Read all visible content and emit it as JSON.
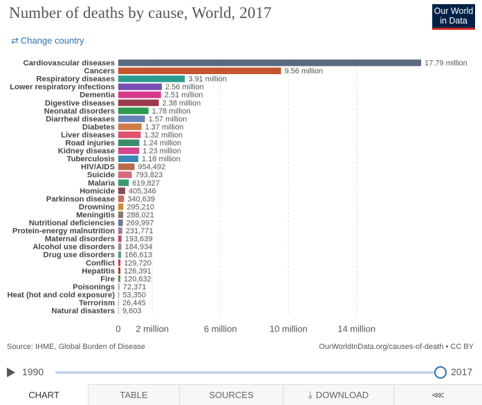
{
  "header": {
    "title": "Number of deaths by cause, World, 2017",
    "logo_line1": "Our World",
    "logo_line2": "in Data",
    "change_country": "Change country",
    "change_country_icon": "swap-arrows-icon"
  },
  "colors": {
    "accent": "#2c6fb3",
    "logo_bg": "#002147",
    "logo_accent": "#ce261e"
  },
  "chart_data": {
    "type": "bar",
    "orientation": "horizontal",
    "categories": [
      "Cardiovascular diseases",
      "Cancers",
      "Respiratory diseases",
      "Lower respiratory infections",
      "Dementia",
      "Digestive diseases",
      "Neonatal disorders",
      "Diarrheal diseases",
      "Diabetes",
      "Liver diseases",
      "Road injuries",
      "Kidney disease",
      "Tuberculosis",
      "HIV/AIDS",
      "Suicide",
      "Malaria",
      "Homicide",
      "Parkinson disease",
      "Drowning",
      "Meningitis",
      "Nutritional deficiencies",
      "Protein-energy malnutrition",
      "Maternal disorders",
      "Alcohol use disorders",
      "Drug use disorders",
      "Conflict",
      "Hepatitis",
      "Fire",
      "Poisonings",
      "Heat (hot and cold exposure)",
      "Terrorism",
      "Natural disasters"
    ],
    "values": [
      17790000,
      9560000,
      3910000,
      2560000,
      2510000,
      2380000,
      1780000,
      1570000,
      1370000,
      1320000,
      1240000,
      1230000,
      1180000,
      954492,
      793823,
      619827,
      405346,
      340639,
      295210,
      288021,
      269997,
      231771,
      193639,
      184934,
      166613,
      129720,
      126391,
      120632,
      72371,
      53350,
      26445,
      9603
    ],
    "value_labels": [
      "17.79 million",
      "9.56 million",
      "3.91 million",
      "2.56 million",
      "2.51 million",
      "2.38 million",
      "1.78 million",
      "1.57 million",
      "1.37 million",
      "1.32 million",
      "1.24 million",
      "1.23 million",
      "1.18 million",
      "954,492",
      "793,823",
      "619,827",
      "405,346",
      "340,639",
      "295,210",
      "288,021",
      "269,997",
      "231,771",
      "193,639",
      "184,934",
      "166,613",
      "129,720",
      "126,391",
      "120,632",
      "72,371",
      "53,350",
      "26,445",
      "9,603"
    ],
    "bar_colors": [
      "#5b6a80",
      "#c6552b",
      "#2a9d8f",
      "#7a4fb5",
      "#d63a8a",
      "#9c3a4e",
      "#2f9a50",
      "#6584b8",
      "#cf7a48",
      "#e0526c",
      "#3c8a6a",
      "#d3458e",
      "#3a86b5",
      "#b86a4b",
      "#d66a80",
      "#3a9a6a",
      "#8a4a5a",
      "#c07060",
      "#d08a3a",
      "#8a7a6a",
      "#6a7a9a",
      "#a07a9a",
      "#c44a7a",
      "#9a8aa0",
      "#5a9a7a",
      "#d0405a",
      "#b04040",
      "#6a8a4a",
      "#9aa0a8",
      "#b89a7a",
      "#a0a0a0",
      "#b0b0b0"
    ],
    "x_ticks": [
      0,
      2000000,
      6000000,
      10000000,
      14000000
    ],
    "x_tick_labels": [
      "0",
      "2 million",
      "6 million",
      "10 million",
      "14 million"
    ],
    "xlim": [
      0,
      17790000
    ],
    "grid": "vertical dashed"
  },
  "footer": {
    "source": "Source: IHME, Global Burden of Disease",
    "license": "OurWorldInData.org/causes-of-death • CC BY"
  },
  "timeline": {
    "start_year": "1990",
    "end_year": "2017",
    "play_icon": "play-icon"
  },
  "tabs": [
    {
      "label": "Chart"
    },
    {
      "label": "Table"
    },
    {
      "label": "Sources"
    },
    {
      "label": "Download",
      "icon": "download-icon"
    },
    {
      "label": "",
      "icon": "share-icon"
    }
  ]
}
